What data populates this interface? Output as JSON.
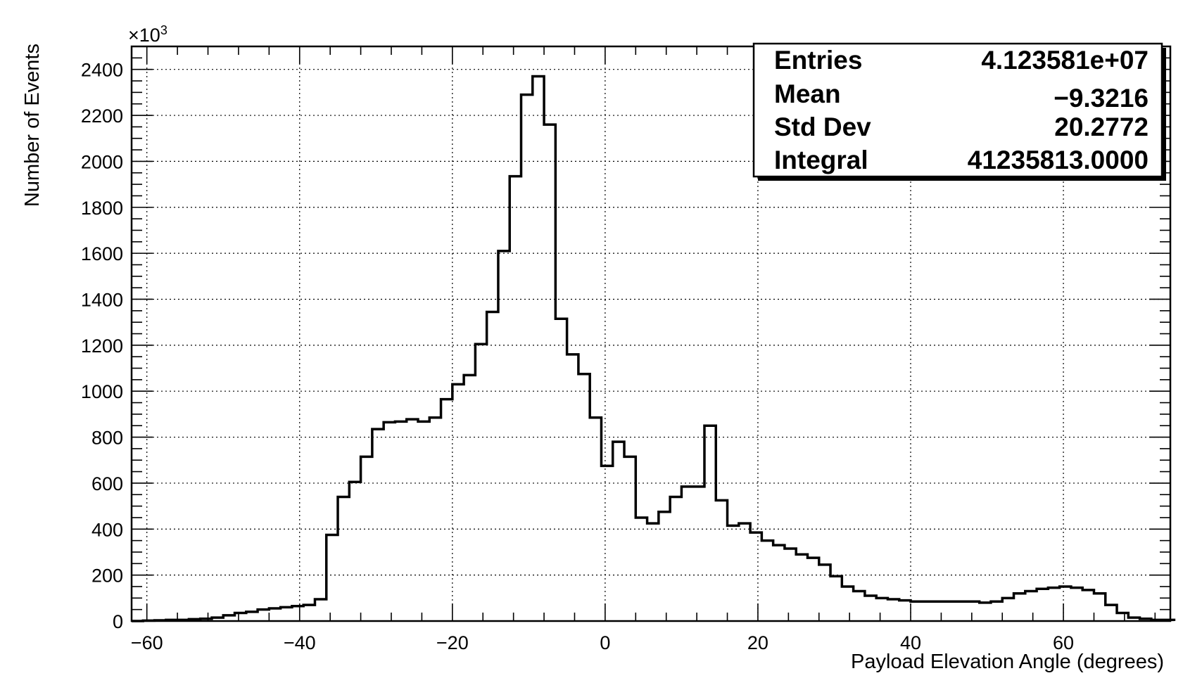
{
  "chart_data": {
    "type": "histogram",
    "xlabel": "Payload Elevation Angle (degrees)",
    "ylabel": "Number of Events",
    "y_multiplier_label": "×10",
    "y_multiplier_exponent": "3",
    "xlim": [
      -62,
      74
    ],
    "ylim": [
      0,
      2500
    ],
    "x_ticks": [
      -60,
      -40,
      -20,
      0,
      20,
      40,
      60
    ],
    "x_tick_labels": [
      "−60",
      "−40",
      "−20",
      "0",
      "20",
      "40",
      "60"
    ],
    "y_ticks": [
      0,
      200,
      400,
      600,
      800,
      1000,
      1200,
      1400,
      1600,
      1800,
      2000,
      2200,
      2400
    ],
    "y_tick_labels": [
      "0",
      "200",
      "400",
      "600",
      "800",
      "1000",
      "1200",
      "1400",
      "1600",
      "1800",
      "2000",
      "2200",
      "2400"
    ],
    "grid": true,
    "bin_edges_start": -62,
    "bin_width": 1.5,
    "values": [
      0,
      2,
      3,
      5,
      5,
      8,
      10,
      15,
      25,
      35,
      40,
      50,
      55,
      60,
      65,
      70,
      95,
      375,
      540,
      605,
      715,
      835,
      865,
      868,
      878,
      868,
      885,
      965,
      1030,
      1070,
      1205,
      1345,
      1610,
      1935,
      2290,
      2370,
      2160,
      1315,
      1160,
      1075,
      885,
      675,
      780,
      715,
      450,
      425,
      475,
      540,
      585,
      585,
      850,
      525,
      415,
      425,
      385,
      350,
      330,
      315,
      290,
      275,
      245,
      195,
      150,
      130,
      110,
      100,
      95,
      90,
      85,
      85,
      85,
      85,
      85,
      85,
      80,
      85,
      100,
      120,
      130,
      140,
      145,
      150,
      145,
      135,
      120,
      70,
      35,
      15,
      10,
      5,
      5
    ],
    "stats": {
      "rows": [
        {
          "label": "Entries",
          "value": "4.123581e+07"
        },
        {
          "label": "Mean",
          "value": "−9.3216"
        },
        {
          "label": "Std Dev",
          "value": "20.2772"
        },
        {
          "label": "Integral",
          "value": "41235813.0000"
        }
      ],
      "placement": "top-right"
    }
  }
}
